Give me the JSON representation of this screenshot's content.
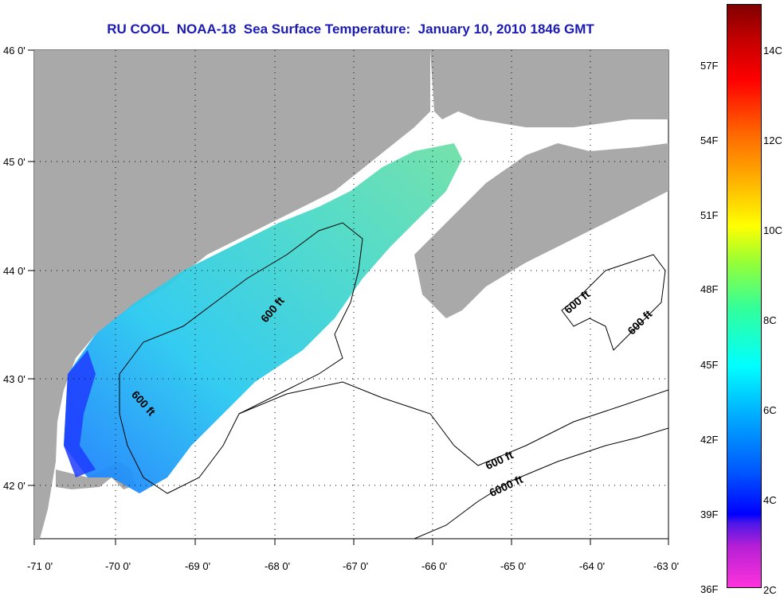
{
  "title": "RU COOL  NOAA-18  Sea Surface Temperature:  January 10, 2010 1846 GMT",
  "map": {
    "lon_range": [
      -71.0,
      -63.0
    ],
    "lat_range": [
      41.5,
      46.0
    ],
    "lat_labels": [
      "46 0'",
      "45 0'",
      "44 0'",
      "43 0'",
      "42 0'"
    ],
    "lon_labels": [
      "-71 0'",
      "-70 0'",
      "-69 0'",
      "-68 0'",
      "-67 0'",
      "-66 0'",
      "-65 0'",
      "-64 0'",
      "-63 0'"
    ],
    "grid": "dotted",
    "contour_labels": [
      "600 ft",
      "600 ft",
      "600 ft",
      "600 ft",
      "6000 ft"
    ],
    "colors": {
      "land": "#a9a9a9",
      "water": "#ffffff",
      "contour": "#000000"
    }
  },
  "colorbar": {
    "fahrenheit_labels": [
      "57F",
      "54F",
      "51F",
      "48F",
      "45F",
      "42F",
      "39F",
      "36F"
    ],
    "celsius_labels": [
      "14C",
      "12C",
      "10C",
      "8C",
      "6C",
      "4C",
      "2C"
    ]
  }
}
